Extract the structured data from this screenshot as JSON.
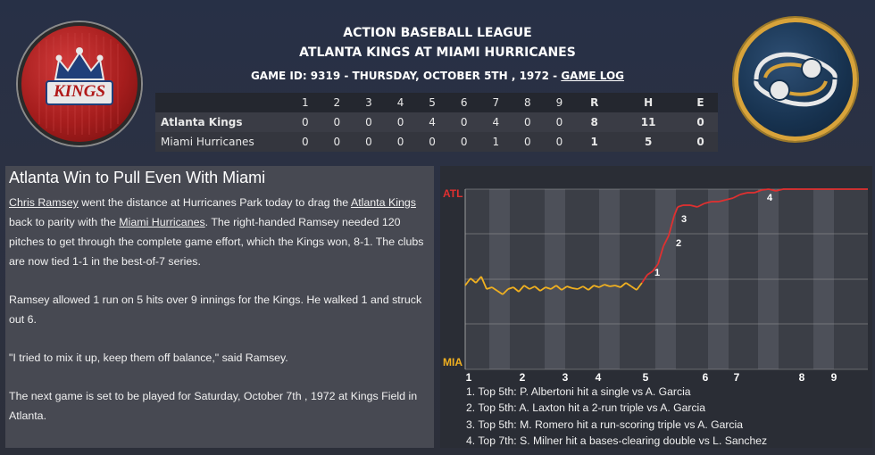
{
  "header": {
    "league": "ACTION BASEBALL LEAGUE",
    "matchup": "ATLANTA KINGS AT MIAMI HURRICANES",
    "game_info": "GAME ID: 9319 - THURSDAY, OCTOBER 5TH , 1972 - ",
    "game_log_link": "GAME LOG"
  },
  "logos": {
    "left_text": "KINGS"
  },
  "scoreboard": {
    "columns": [
      "1",
      "2",
      "3",
      "4",
      "5",
      "6",
      "7",
      "8",
      "9",
      "R",
      "H",
      "E"
    ],
    "rows": [
      {
        "team": "Atlanta Kings",
        "innings": [
          "0",
          "0",
          "0",
          "0",
          "4",
          "0",
          "4",
          "0",
          "0"
        ],
        "r": "8",
        "h": "11",
        "e": "0"
      },
      {
        "team": "Miami Hurricanes",
        "innings": [
          "0",
          "0",
          "0",
          "0",
          "0",
          "0",
          "1",
          "0",
          "0"
        ],
        "r": "1",
        "h": "5",
        "e": "0"
      }
    ]
  },
  "story": {
    "headline": "Atlanta Win to Pull Even With Miami",
    "p1_link1": "Chris Ramsey",
    "p1_a": " went the distance at Hurricanes Park today to drag the ",
    "p1_link2": "Atlanta Kings",
    "p1_b": " back to parity with the ",
    "p1_link3": "Miami Hurricanes",
    "p1_c": ". The right-handed Ramsey needed 120 pitches to get through the complete game effort, which the Kings won, 8-1. The clubs are now tied 1-1 in the best-of-7 series.",
    "p2": "Ramsey allowed 1 run on 5 hits over 9 innings for the Kings. He walked 1 and struck out 6.",
    "p3": "\"I tried to mix it up, keep them off balance,\" said Ramsey.",
    "p4": "The next game is set to be played for Saturday, October 7th , 1972 at Kings Field in Atlanta."
  },
  "win_graph": {
    "top_label": "ATL",
    "bottom_label": "MIA",
    "inning_labels": [
      "1",
      "2",
      "3",
      "4",
      "5",
      "6",
      "7",
      "8",
      "9"
    ],
    "top_color": "#e03030",
    "bottom_color": "#f0b020",
    "markers": [
      "1",
      "2",
      "3",
      "4"
    ],
    "plays": [
      "1. Top 5th: P. Albertoni hit a single vs A. Garcia",
      "2. Top 5th: A. Laxton hit a 2-run triple vs A. Garcia",
      "3. Top 5th: M. Romero hit a run-scoring triple vs A. Garcia",
      "4. Top 7th: S. Milner hit a bases-clearing double vs L. Sanchez"
    ]
  }
}
